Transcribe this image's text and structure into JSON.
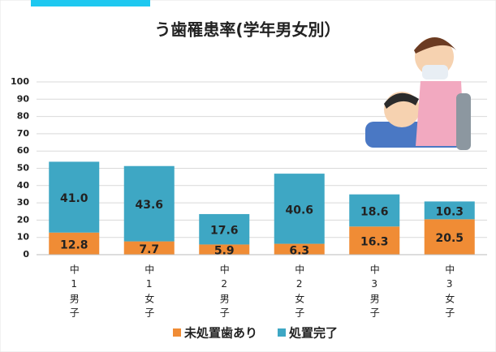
{
  "chart_data": {
    "type": "stacked-bar",
    "title": "う歯罹患率(学年男女別）",
    "categories": [
      "中1男子",
      "中1女子",
      "中2男子",
      "中2女子",
      "中3男子",
      "中3女子"
    ],
    "series": [
      {
        "name": "未処置歯あり",
        "color": "#f08c35",
        "values": [
          12.8,
          7.7,
          5.9,
          6.3,
          16.3,
          20.5
        ],
        "value_labels": [
          "12.8",
          "7.7",
          "5.9",
          "6.3",
          "16.3",
          "20.5"
        ]
      },
      {
        "name": "処置完了",
        "color": "#3ea7c4",
        "values": [
          41.0,
          43.6,
          17.6,
          40.6,
          18.6,
          10.3
        ],
        "value_labels": [
          "41.0",
          "43.6",
          "17.6",
          "40.6",
          "18.6",
          "10.3"
        ]
      }
    ],
    "ylim": [
      0,
      100
    ],
    "yticks": [
      0,
      10,
      20,
      30,
      40,
      50,
      60,
      70,
      80,
      90,
      100
    ],
    "grid": true,
    "legend": "bottom"
  }
}
